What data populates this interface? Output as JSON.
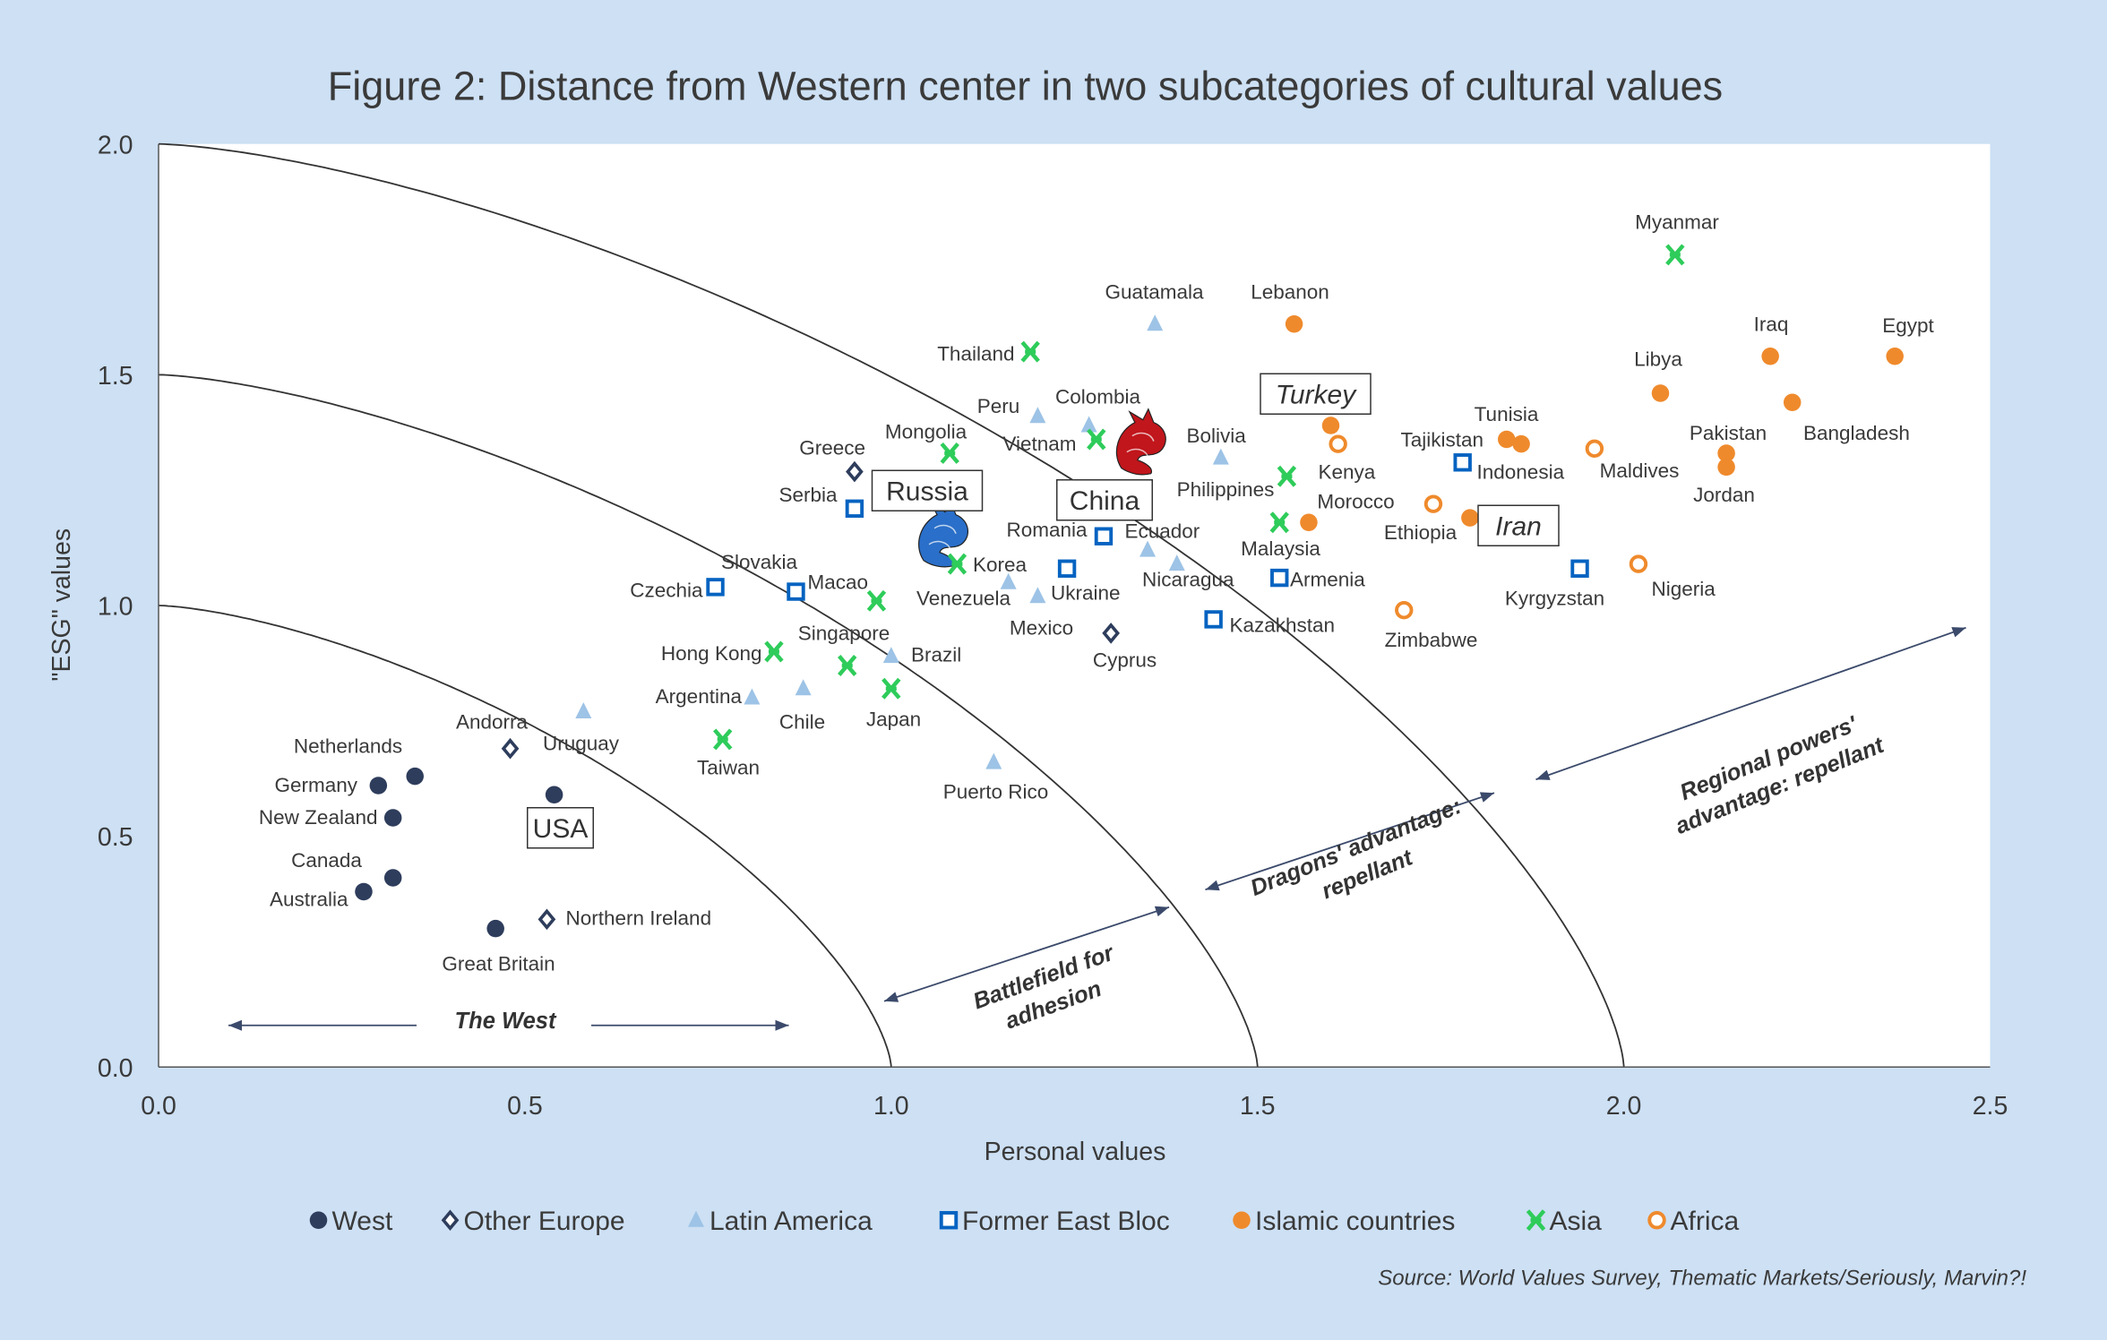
{
  "chart_data": {
    "type": "scatter",
    "title": "Figure 2: Distance from Western center in two subcategories of cultural values",
    "xlabel": "Personal values",
    "ylabel": "\"ESG\" values",
    "xlim": [
      0,
      2.5
    ],
    "ylim": [
      0,
      2
    ],
    "xticks": [
      "0.0",
      "0.5",
      "1.0",
      "1.5",
      "2.0",
      "2.5"
    ],
    "yticks": [
      "0.0",
      "0.5",
      "1.0",
      "1.5",
      "2.0"
    ],
    "grid": false,
    "legend_position": "bottom",
    "boundary_curves_radius": [
      1.0,
      1.5,
      2.0
    ],
    "series": [
      {
        "name": "West",
        "marker": "circle",
        "color": "#2e3d5c",
        "points": [
          {
            "label": "Netherlands",
            "x": 0.35,
            "y": 0.63
          },
          {
            "label": "Germany",
            "x": 0.3,
            "y": 0.61
          },
          {
            "label": "New Zealand",
            "x": 0.32,
            "y": 0.54
          },
          {
            "label": "Canada",
            "x": 0.32,
            "y": 0.41
          },
          {
            "label": "Australia",
            "x": 0.28,
            "y": 0.38
          },
          {
            "label": "Great Britain",
            "x": 0.46,
            "y": 0.3
          },
          {
            "label": "USA",
            "x": 0.54,
            "y": 0.59,
            "highlight": true
          }
        ]
      },
      {
        "name": "Other Europe",
        "marker": "diamond",
        "color": "#2e3d5c",
        "points": [
          {
            "label": "Andorra",
            "x": 0.48,
            "y": 0.69
          },
          {
            "label": "Northern Ireland",
            "x": 0.53,
            "y": 0.32
          },
          {
            "label": "Greece",
            "x": 0.95,
            "y": 1.29
          },
          {
            "label": "Cyprus",
            "x": 1.3,
            "y": 0.94
          }
        ]
      },
      {
        "name": "Latin America",
        "marker": "triangle",
        "color": "#9dc3e6",
        "points": [
          {
            "label": "Uruguay",
            "x": 0.58,
            "y": 0.77
          },
          {
            "label": "Argentina",
            "x": 0.81,
            "y": 0.8
          },
          {
            "label": "Chile",
            "x": 0.88,
            "y": 0.82
          },
          {
            "label": "Brazil",
            "x": 1.0,
            "y": 0.89
          },
          {
            "label": "Puerto Rico",
            "x": 1.14,
            "y": 0.66
          },
          {
            "label": "Venezuela",
            "x": 1.16,
            "y": 1.05
          },
          {
            "label": "Mexico",
            "x": 1.2,
            "y": 1.02
          },
          {
            "label": "Peru",
            "x": 1.2,
            "y": 1.41
          },
          {
            "label": "Colombia",
            "x": 1.27,
            "y": 1.39
          },
          {
            "label": "Guatamala",
            "x": 1.36,
            "y": 1.61
          },
          {
            "label": "Ecuador",
            "x": 1.35,
            "y": 1.12
          },
          {
            "label": "Nicaragua",
            "x": 1.39,
            "y": 1.09
          },
          {
            "label": "Bolivia",
            "x": 1.45,
            "y": 1.32
          }
        ]
      },
      {
        "name": "Former East Bloc",
        "marker": "square",
        "color": "#0563c1",
        "points": [
          {
            "label": "Czechia",
            "x": 0.76,
            "y": 1.04
          },
          {
            "label": "Slovakia",
            "x": 0.87,
            "y": 1.03
          },
          {
            "label": "Serbia",
            "x": 0.95,
            "y": 1.21
          },
          {
            "label": "Romania",
            "x": 1.29,
            "y": 1.15
          },
          {
            "label": "Ukraine",
            "x": 1.24,
            "y": 1.08
          },
          {
            "label": "Kazakhstan",
            "x": 1.44,
            "y": 0.97
          },
          {
            "label": "Armenia",
            "x": 1.53,
            "y": 1.06
          },
          {
            "label": "Tajikistan",
            "x": 1.78,
            "y": 1.31
          },
          {
            "label": "Kyrgyzstan",
            "x": 1.94,
            "y": 1.08
          }
        ]
      },
      {
        "name": "Islamic countries",
        "marker": "circle",
        "color": "#ef8a2c",
        "points": [
          {
            "label": "Lebanon",
            "x": 1.55,
            "y": 1.61
          },
          {
            "label": "Turkey",
            "x": 1.6,
            "y": 1.39,
            "highlight": true
          },
          {
            "label": "Morocco",
            "x": 1.57,
            "y": 1.18
          },
          {
            "label": "Iran",
            "x": 1.79,
            "y": 1.19,
            "highlight": true
          },
          {
            "label": "Tunisia",
            "x": 1.84,
            "y": 1.36
          },
          {
            "label": "Indonesia",
            "x": 1.86,
            "y": 1.35
          },
          {
            "label": "Libya",
            "x": 2.05,
            "y": 1.46
          },
          {
            "label": "Iraq",
            "x": 2.2,
            "y": 1.54
          },
          {
            "label": "Egypt",
            "x": 2.37,
            "y": 1.54
          },
          {
            "label": "Bangladesh",
            "x": 2.23,
            "y": 1.44
          },
          {
            "label": "Pakistan",
            "x": 2.14,
            "y": 1.33
          },
          {
            "label": "Jordan",
            "x": 2.14,
            "y": 1.3
          }
        ]
      },
      {
        "name": "Asia",
        "marker": "x",
        "color": "#2ecc5a",
        "points": [
          {
            "label": "Myanmar",
            "x": 2.07,
            "y": 1.76
          },
          {
            "label": "Thailand",
            "x": 1.19,
            "y": 1.55
          },
          {
            "label": "Mongolia",
            "x": 1.08,
            "y": 1.33
          },
          {
            "label": "Vietnam",
            "x": 1.28,
            "y": 1.36
          },
          {
            "label": "Philippines",
            "x": 1.54,
            "y": 1.28
          },
          {
            "label": "Malaysia",
            "x": 1.53,
            "y": 1.18
          },
          {
            "label": "Korea",
            "x": 1.09,
            "y": 1.09
          },
          {
            "label": "Macao",
            "x": 0.98,
            "y": 1.01
          },
          {
            "label": "Hong Kong",
            "x": 0.84,
            "y": 0.9
          },
          {
            "label": "Singapore",
            "x": 0.94,
            "y": 0.87
          },
          {
            "label": "Japan",
            "x": 1.0,
            "y": 0.82
          },
          {
            "label": "Taiwan",
            "x": 0.77,
            "y": 0.71
          }
        ]
      },
      {
        "name": "Africa",
        "marker": "open-circle",
        "color": "#ef8a2c",
        "points": [
          {
            "label": "Kenya",
            "x": 1.61,
            "y": 1.35
          },
          {
            "label": "Ethiopia",
            "x": 1.74,
            "y": 1.22
          },
          {
            "label": "Maldives",
            "x": 1.96,
            "y": 1.34
          },
          {
            "label": "Zimbabwe",
            "x": 1.7,
            "y": 0.99
          },
          {
            "label": "Nigeria",
            "x": 2.02,
            "y": 1.09
          }
        ]
      }
    ],
    "dragons": [
      {
        "label": "Russia",
        "x": 1.07,
        "y": 1.15,
        "color": "#2a6fc9",
        "icon": "blue-dragon-icon"
      },
      {
        "label": "China",
        "x": 1.34,
        "y": 1.35,
        "color": "#c0161c",
        "icon": "red-dragon-icon"
      }
    ],
    "annotations": {
      "west": "The West",
      "battlefield": [
        "Battlefield for",
        "adhesion"
      ],
      "dragons": [
        "Dragons' advantage:",
        "repellant"
      ],
      "regional": [
        "Regional powers'",
        "advantage: repellant"
      ]
    },
    "source": "Source: World Values Survey, Thematic Markets/Seriously, Marvin?!"
  },
  "colors": {
    "background": "#cde0f4",
    "plot": "#ffffff",
    "axis": "#3a3a3a"
  }
}
